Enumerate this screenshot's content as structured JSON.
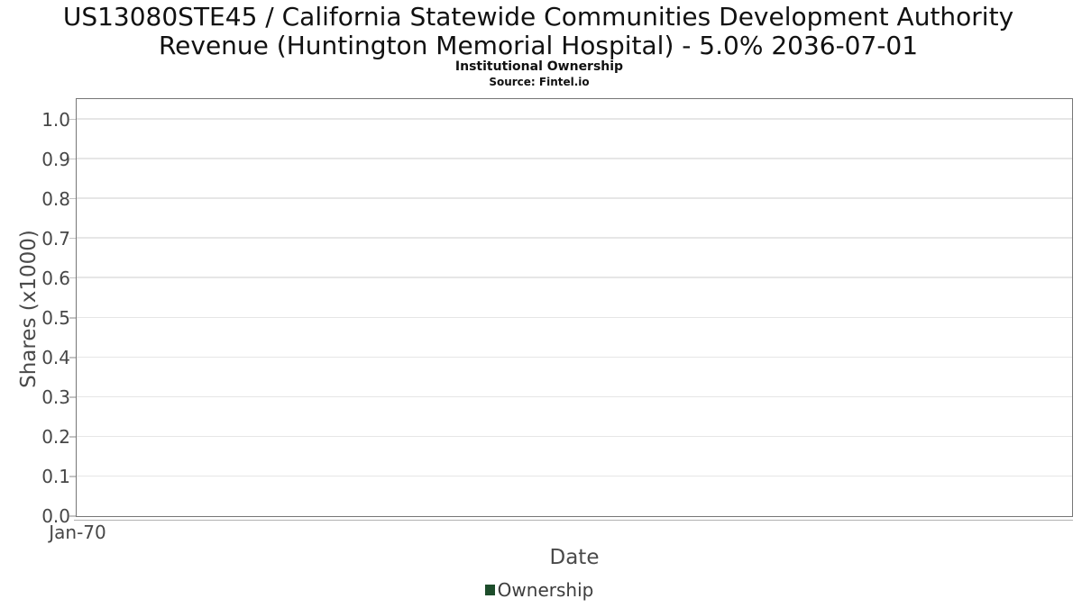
{
  "colors": {
    "background": "#ffffff",
    "title_text": "#111111",
    "axis_text": "#4a4a4a",
    "tick_text": "#474747",
    "legend_text": "#3d3d3d",
    "plot_border": "#767676",
    "gridline": "#e6e6e6",
    "tick_mark": "#c4c4c4",
    "x_axis_line": "#b2b2b2",
    "series_green": "#1d4d2b"
  },
  "chart_data": {
    "type": "line",
    "title": "US13080STE45 / California Statewide Communities Development Authority Revenue (Huntington Memorial Hospital) - 5.0% 2036-07-01",
    "subtitle": "Institutional Ownership",
    "source": "Source: Fintel.io",
    "xlabel": "Date",
    "ylabel": "Shares (x1000)",
    "x_tick_labels": [
      "Jan-70"
    ],
    "y_tick_labels": [
      "0.0",
      "0.1",
      "0.2",
      "0.3",
      "0.4",
      "0.5",
      "0.6",
      "0.7",
      "0.8",
      "0.9",
      "1.0"
    ],
    "ylim": [
      0,
      1.05
    ],
    "grid": "horizontal-only",
    "legend_position": "bottom-center",
    "series": [
      {
        "name": "Ownership",
        "color": "#1d4d2b",
        "marker": "square",
        "x": [],
        "values": []
      }
    ]
  }
}
